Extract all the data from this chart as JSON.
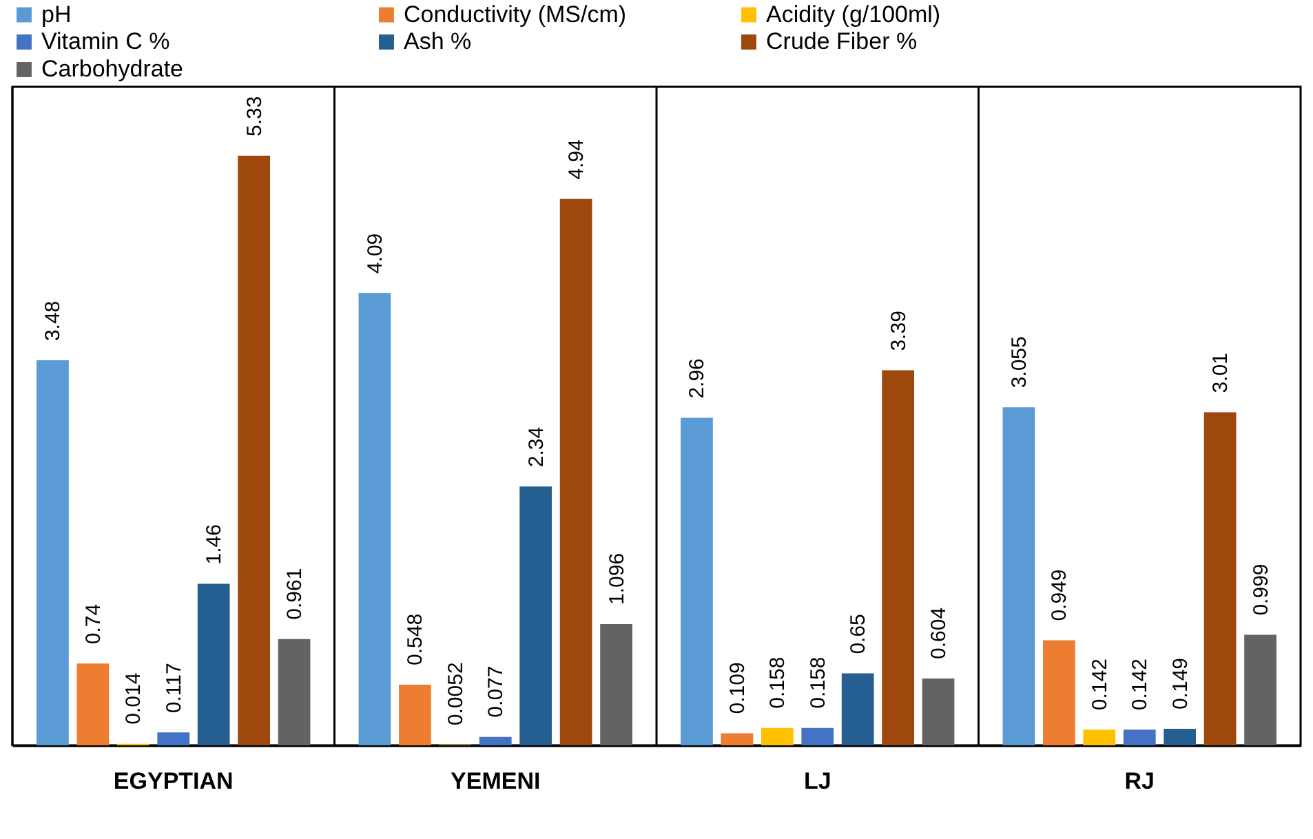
{
  "chart_data": {
    "type": "bar",
    "categories": [
      "EGYPTIAN",
      "YEMENI",
      "LJ",
      "RJ"
    ],
    "series": [
      {
        "name": "pH",
        "color": "#5b9bd5",
        "values": [
          3.48,
          4.09,
          2.96,
          3.055
        ]
      },
      {
        "name": "Conductivity (MS/cm)",
        "color": "#ed7d31",
        "values": [
          0.74,
          0.548,
          0.109,
          0.949
        ]
      },
      {
        "name": "Acidity (g/100ml)",
        "color": "#ffc000",
        "values": [
          0.014,
          0.0052,
          0.158,
          0.142
        ]
      },
      {
        "name": "Vitamin C %",
        "color": "#4472c4",
        "values": [
          0.117,
          0.077,
          0.158,
          0.142
        ]
      },
      {
        "name": "Ash %",
        "color": "#255e91",
        "values": [
          1.46,
          2.34,
          0.65,
          0.149
        ]
      },
      {
        "name": "Crude Fiber %",
        "color": "#9e480e",
        "values": [
          5.33,
          4.94,
          3.39,
          3.01
        ]
      },
      {
        "name": "Carbohydrate",
        "color": "#636363",
        "values": [
          0.961,
          1.096,
          0.604,
          0.999
        ]
      }
    ],
    "data_labels": true,
    "grid": false,
    "legend": "top"
  }
}
